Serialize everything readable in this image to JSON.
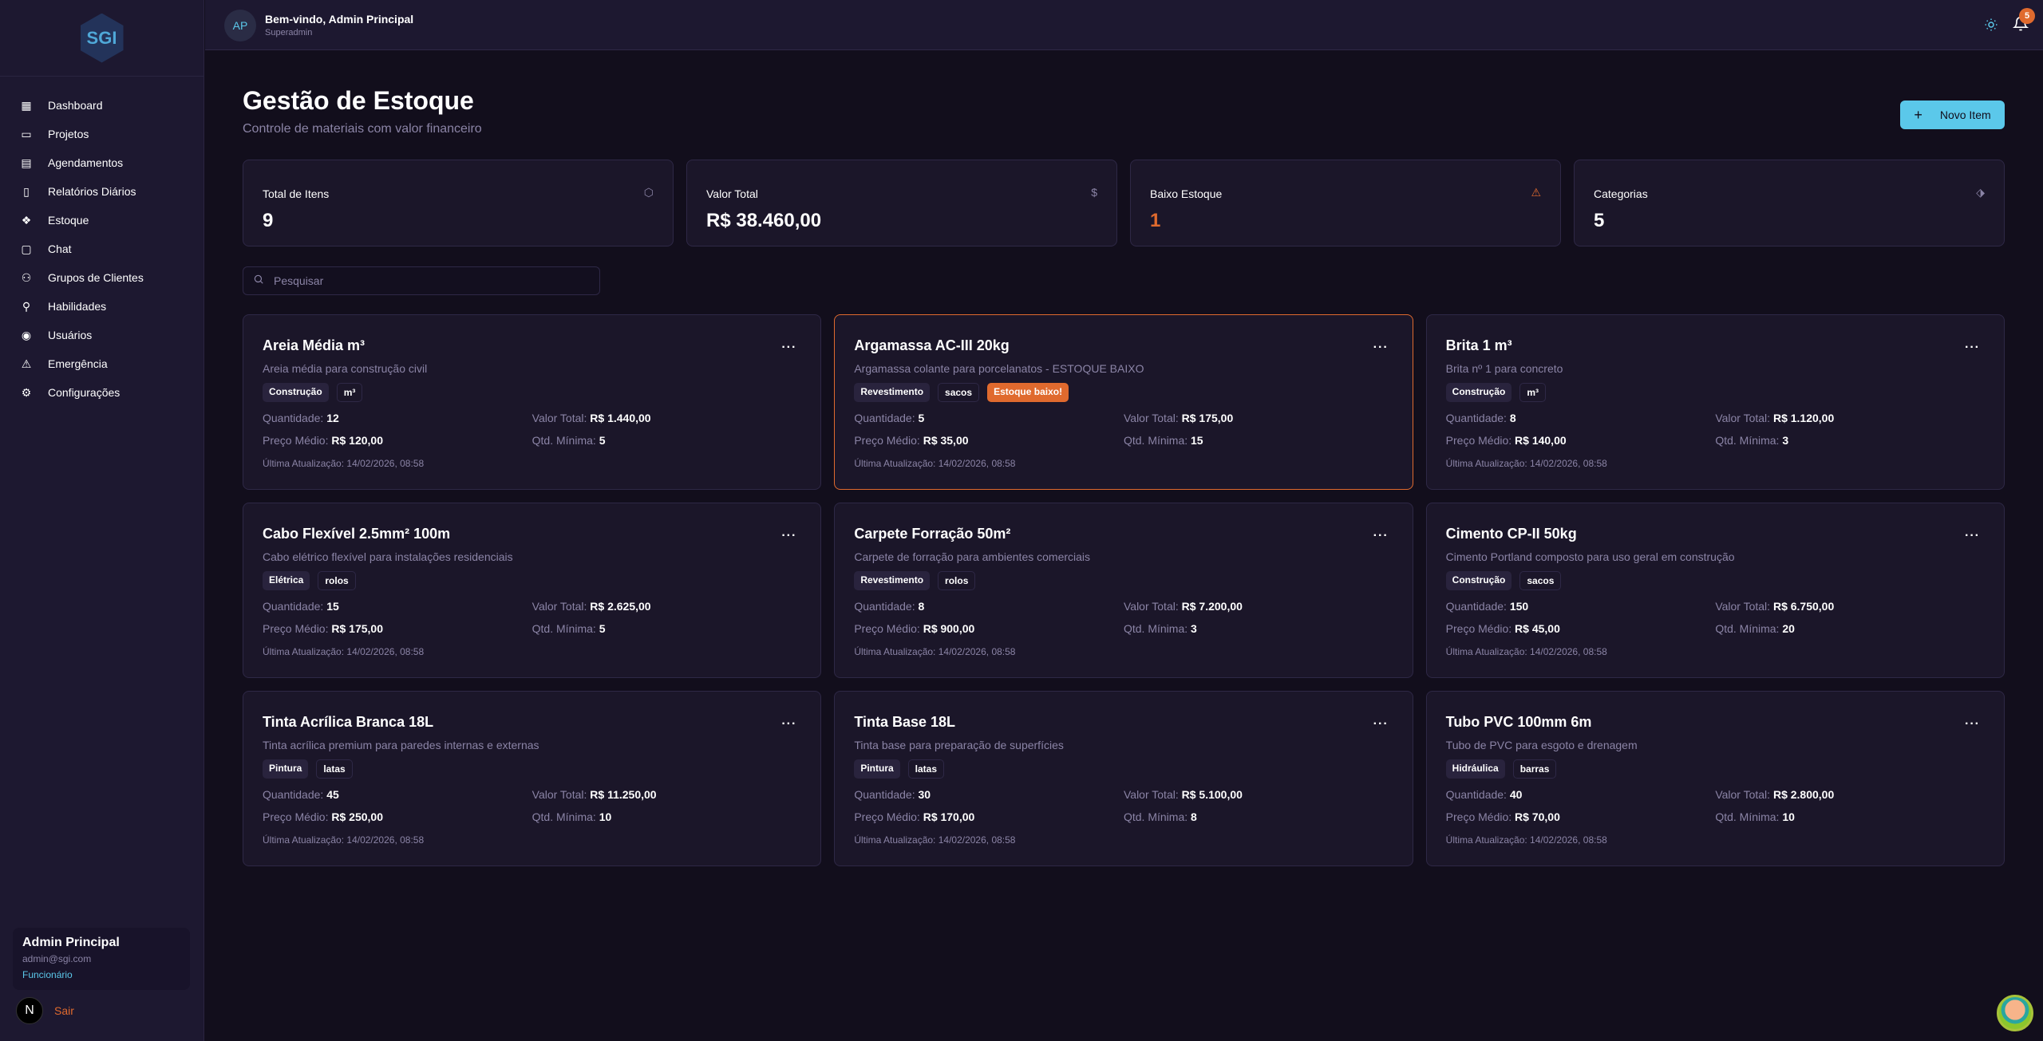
{
  "sidebar": {
    "logo": "SGI",
    "items": [
      {
        "label": "Dashboard",
        "icon": "layout-grid-icon"
      },
      {
        "label": "Projetos",
        "icon": "folder-icon"
      },
      {
        "label": "Agendamentos",
        "icon": "calendar-icon"
      },
      {
        "label": "Relatórios Diários",
        "icon": "clipboard-icon"
      },
      {
        "label": "Estoque",
        "icon": "boxes-icon"
      },
      {
        "label": "Chat",
        "icon": "message-icon"
      },
      {
        "label": "Grupos de Clientes",
        "icon": "users-icon"
      },
      {
        "label": "Habilidades",
        "icon": "wrench-icon"
      },
      {
        "label": "Usuários",
        "icon": "user-circle-icon"
      },
      {
        "label": "Emergência",
        "icon": "alert-triangle-icon"
      },
      {
        "label": "Configurações",
        "icon": "gear-icon"
      }
    ],
    "user": {
      "name": "Admin Principal",
      "email": "admin@sgi.com",
      "role": "Funcionário"
    },
    "logout": "Sair",
    "avatar_letter": "N"
  },
  "header": {
    "initials": "AP",
    "welcome": "Bem-vindo, Admin Principal",
    "role": "Superadmin",
    "notifications": "5"
  },
  "page": {
    "title": "Gestão de Estoque",
    "subtitle": "Controle de materiais com valor financeiro",
    "new_button": "Novo Item",
    "search_placeholder": "Pesquisar"
  },
  "stats": [
    {
      "label": "Total de Itens",
      "value": "9",
      "icon": "package-icon"
    },
    {
      "label": "Valor Total",
      "value": "R$ 38.460,00",
      "icon": "dollar-icon"
    },
    {
      "label": "Baixo Estoque",
      "value": "1",
      "icon": "alert-triangle-icon"
    },
    {
      "label": "Categorias",
      "value": "5",
      "icon": "tags-icon"
    }
  ],
  "labels": {
    "qty": "Quantidade:",
    "total": "Valor Total:",
    "price": "Preço Médio:",
    "min": "Qtd. Mínima:",
    "updated": "Última Atualização:"
  },
  "colors": {
    "accent": "#5bc8ea",
    "warning": "#e06a2e",
    "bg": "#120e1c",
    "card": "#1b1629"
  },
  "items": [
    {
      "name": "Areia Média m³",
      "desc": "Areia média para construção civil",
      "category": "Construção",
      "unit": "m³",
      "qty": "12",
      "total": "R$ 1.440,00",
      "price": "R$ 120,00",
      "min": "5",
      "updated": "14/02/2026, 08:58"
    },
    {
      "name": "Argamassa AC-III 20kg",
      "desc": "Argamassa colante para porcelanatos - ESTOQUE BAIXO",
      "category": "Revestimento",
      "unit": "sacos",
      "warning": "Estoque baixo!",
      "qty": "5",
      "total": "R$ 175,00",
      "price": "R$ 35,00",
      "min": "15",
      "updated": "14/02/2026, 08:58"
    },
    {
      "name": "Brita 1 m³",
      "desc": "Brita nº 1 para concreto",
      "category": "Construção",
      "unit": "m³",
      "qty": "8",
      "total": "R$ 1.120,00",
      "price": "R$ 140,00",
      "min": "3",
      "updated": "14/02/2026, 08:58"
    },
    {
      "name": "Cabo Flexível 2.5mm² 100m",
      "desc": "Cabo elétrico flexível para instalações residenciais",
      "category": "Elétrica",
      "unit": "rolos",
      "qty": "15",
      "total": "R$ 2.625,00",
      "price": "R$ 175,00",
      "min": "5",
      "updated": "14/02/2026, 08:58"
    },
    {
      "name": "Carpete Forração 50m²",
      "desc": "Carpete de forração para ambientes comerciais",
      "category": "Revestimento",
      "unit": "rolos",
      "qty": "8",
      "total": "R$ 7.200,00",
      "price": "R$ 900,00",
      "min": "3",
      "updated": "14/02/2026, 08:58"
    },
    {
      "name": "Cimento CP-II 50kg",
      "desc": "Cimento Portland composto para uso geral em construção",
      "category": "Construção",
      "unit": "sacos",
      "qty": "150",
      "total": "R$ 6.750,00",
      "price": "R$ 45,00",
      "min": "20",
      "updated": "14/02/2026, 08:58"
    },
    {
      "name": "Tinta Acrílica Branca 18L",
      "desc": "Tinta acrílica premium para paredes internas e externas",
      "category": "Pintura",
      "unit": "latas",
      "qty": "45",
      "total": "R$ 11.250,00",
      "price": "R$ 250,00",
      "min": "10",
      "updated": "14/02/2026, 08:58"
    },
    {
      "name": "Tinta Base 18L",
      "desc": "Tinta base para preparação de superfícies",
      "category": "Pintura",
      "unit": "latas",
      "qty": "30",
      "total": "R$ 5.100,00",
      "price": "R$ 170,00",
      "min": "8",
      "updated": "14/02/2026, 08:58"
    },
    {
      "name": "Tubo PVC 100mm 6m",
      "desc": "Tubo de PVC para esgoto e drenagem",
      "category": "Hidráulica",
      "unit": "barras",
      "qty": "40",
      "total": "R$ 2.800,00",
      "price": "R$ 70,00",
      "min": "10",
      "updated": "14/02/2026, 08:58"
    }
  ]
}
